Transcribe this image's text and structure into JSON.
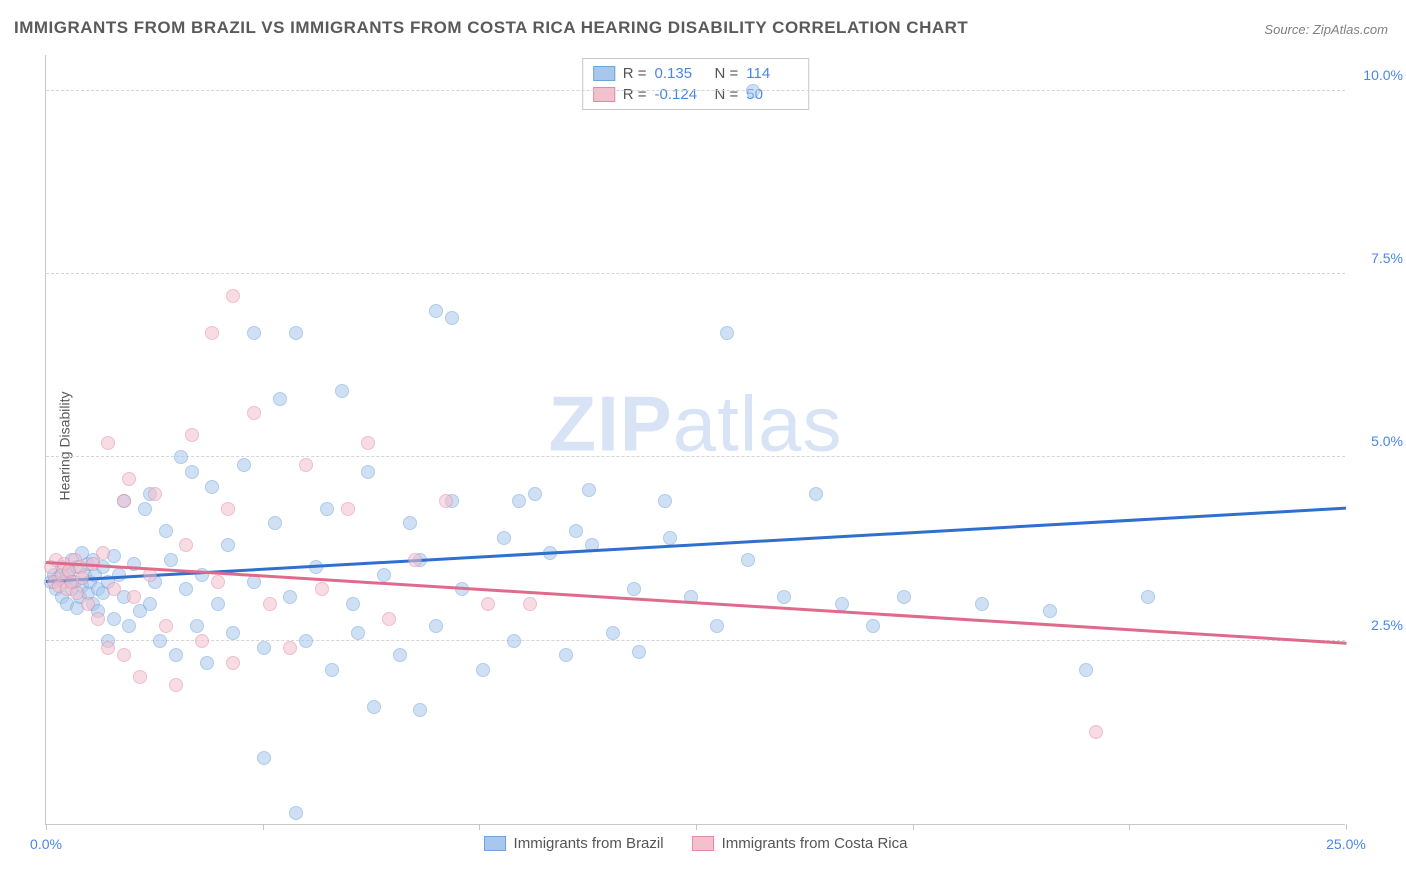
{
  "title": "IMMIGRANTS FROM BRAZIL VS IMMIGRANTS FROM COSTA RICA HEARING DISABILITY CORRELATION CHART",
  "source_label": "Source:",
  "source_value": "ZipAtlas.com",
  "ylabel": "Hearing Disability",
  "watermark_a": "ZIP",
  "watermark_b": "atlas",
  "chart": {
    "type": "scatter",
    "background": "#ffffff",
    "grid_color": "#d5d5d5",
    "axis_color": "#c8c8c8",
    "tick_label_color": "#4a86e8",
    "xlim": [
      0,
      25
    ],
    "ylim": [
      0,
      10.5
    ],
    "yticks": [
      2.5,
      5.0,
      7.5,
      10.0
    ],
    "ytick_labels": [
      "2.5%",
      "5.0%",
      "7.5%",
      "10.0%"
    ],
    "xticks": [
      0,
      4.17,
      8.33,
      12.5,
      16.67,
      20.83,
      25
    ],
    "xtick_labels": {
      "0": "0.0%",
      "25": "25.0%"
    },
    "series": [
      {
        "name": "Immigrants from Brazil",
        "color_fill": "#a8c7ec",
        "color_stroke": "#6fa3db",
        "marker_size": 14,
        "R": "0.135",
        "N": "114",
        "trend": {
          "y_at_x0": 3.3,
          "y_at_x25": 4.3,
          "color": "#2f6fd0",
          "width": 2.5
        },
        "points": [
          [
            0.1,
            3.3
          ],
          [
            0.15,
            3.4
          ],
          [
            0.2,
            3.2
          ],
          [
            0.25,
            3.35
          ],
          [
            0.3,
            3.5
          ],
          [
            0.3,
            3.1
          ],
          [
            0.35,
            3.3
          ],
          [
            0.4,
            3.4
          ],
          [
            0.4,
            3.0
          ],
          [
            0.45,
            3.45
          ],
          [
            0.5,
            3.6
          ],
          [
            0.5,
            3.2
          ],
          [
            0.55,
            3.3
          ],
          [
            0.6,
            3.5
          ],
          [
            0.6,
            2.95
          ],
          [
            0.65,
            3.1
          ],
          [
            0.7,
            3.7
          ],
          [
            0.7,
            3.25
          ],
          [
            0.75,
            3.4
          ],
          [
            0.8,
            3.15
          ],
          [
            0.8,
            3.55
          ],
          [
            0.85,
            3.3
          ],
          [
            0.9,
            3.0
          ],
          [
            0.9,
            3.6
          ],
          [
            0.95,
            3.4
          ],
          [
            1.0,
            3.2
          ],
          [
            1.0,
            2.9
          ],
          [
            1.1,
            3.5
          ],
          [
            1.1,
            3.15
          ],
          [
            1.2,
            2.5
          ],
          [
            1.2,
            3.3
          ],
          [
            1.3,
            3.65
          ],
          [
            1.3,
            2.8
          ],
          [
            1.4,
            3.4
          ],
          [
            1.5,
            3.1
          ],
          [
            1.5,
            4.4
          ],
          [
            1.6,
            2.7
          ],
          [
            1.7,
            3.55
          ],
          [
            1.8,
            2.9
          ],
          [
            1.9,
            4.3
          ],
          [
            2.0,
            3.0
          ],
          [
            2.0,
            4.5
          ],
          [
            2.1,
            3.3
          ],
          [
            2.2,
            2.5
          ],
          [
            2.3,
            4.0
          ],
          [
            2.4,
            3.6
          ],
          [
            2.5,
            2.3
          ],
          [
            2.6,
            5.0
          ],
          [
            2.7,
            3.2
          ],
          [
            2.8,
            4.8
          ],
          [
            2.9,
            2.7
          ],
          [
            3.0,
            3.4
          ],
          [
            3.1,
            2.2
          ],
          [
            3.2,
            4.6
          ],
          [
            3.3,
            3.0
          ],
          [
            3.5,
            3.8
          ],
          [
            3.6,
            2.6
          ],
          [
            3.8,
            4.9
          ],
          [
            4.0,
            6.7
          ],
          [
            4.0,
            3.3
          ],
          [
            4.2,
            2.4
          ],
          [
            4.2,
            0.9
          ],
          [
            4.4,
            4.1
          ],
          [
            4.5,
            5.8
          ],
          [
            4.7,
            3.1
          ],
          [
            4.8,
            6.7
          ],
          [
            4.8,
            0.15
          ],
          [
            5.0,
            2.5
          ],
          [
            5.2,
            3.5
          ],
          [
            5.4,
            4.3
          ],
          [
            5.5,
            2.1
          ],
          [
            5.7,
            5.9
          ],
          [
            5.9,
            3.0
          ],
          [
            6.0,
            2.6
          ],
          [
            6.2,
            4.8
          ],
          [
            6.3,
            1.6
          ],
          [
            6.5,
            3.4
          ],
          [
            6.8,
            2.3
          ],
          [
            7.0,
            4.1
          ],
          [
            7.2,
            3.6
          ],
          [
            7.2,
            1.55
          ],
          [
            7.5,
            7.0
          ],
          [
            7.5,
            2.7
          ],
          [
            7.8,
            4.4
          ],
          [
            7.8,
            6.9
          ],
          [
            8.0,
            3.2
          ],
          [
            8.4,
            2.1
          ],
          [
            8.8,
            3.9
          ],
          [
            9.0,
            2.5
          ],
          [
            9.1,
            4.4
          ],
          [
            9.4,
            4.5
          ],
          [
            9.7,
            3.7
          ],
          [
            10.0,
            2.3
          ],
          [
            10.2,
            4.0
          ],
          [
            10.45,
            4.55
          ],
          [
            10.5,
            3.8
          ],
          [
            10.9,
            2.6
          ],
          [
            11.3,
            3.2
          ],
          [
            11.4,
            2.35
          ],
          [
            11.9,
            4.4
          ],
          [
            12.0,
            3.9
          ],
          [
            12.4,
            3.1
          ],
          [
            12.9,
            2.7
          ],
          [
            13.1,
            6.7
          ],
          [
            13.5,
            3.6
          ],
          [
            13.6,
            10.0
          ],
          [
            14.2,
            3.1
          ],
          [
            14.8,
            4.5
          ],
          [
            15.3,
            3.0
          ],
          [
            15.9,
            2.7
          ],
          [
            16.5,
            3.1
          ],
          [
            18.0,
            3.0
          ],
          [
            19.3,
            2.9
          ],
          [
            20.0,
            2.1
          ],
          [
            21.2,
            3.1
          ]
        ]
      },
      {
        "name": "Immigrants from Costa Rica",
        "color_fill": "#f3c0cd",
        "color_stroke": "#e38aa3",
        "marker_size": 14,
        "R": "-0.124",
        "N": "50",
        "trend": {
          "y_at_x0": 3.55,
          "y_at_x25": 2.45,
          "color": "#e06a8c",
          "width": 2.5
        },
        "points": [
          [
            0.1,
            3.5
          ],
          [
            0.15,
            3.3
          ],
          [
            0.2,
            3.6
          ],
          [
            0.25,
            3.25
          ],
          [
            0.3,
            3.4
          ],
          [
            0.35,
            3.55
          ],
          [
            0.4,
            3.2
          ],
          [
            0.45,
            3.45
          ],
          [
            0.5,
            3.3
          ],
          [
            0.55,
            3.6
          ],
          [
            0.6,
            3.15
          ],
          [
            0.65,
            3.5
          ],
          [
            0.7,
            3.35
          ],
          [
            0.8,
            3.0
          ],
          [
            0.9,
            3.55
          ],
          [
            1.0,
            2.8
          ],
          [
            1.1,
            3.7
          ],
          [
            1.2,
            2.4
          ],
          [
            1.2,
            5.2
          ],
          [
            1.3,
            3.2
          ],
          [
            1.5,
            4.4
          ],
          [
            1.5,
            2.3
          ],
          [
            1.6,
            4.7
          ],
          [
            1.7,
            3.1
          ],
          [
            1.8,
            2.0
          ],
          [
            2.0,
            3.4
          ],
          [
            2.1,
            4.5
          ],
          [
            2.3,
            2.7
          ],
          [
            2.5,
            1.9
          ],
          [
            2.7,
            3.8
          ],
          [
            2.8,
            5.3
          ],
          [
            3.0,
            2.5
          ],
          [
            3.2,
            6.7
          ],
          [
            3.3,
            3.3
          ],
          [
            3.5,
            4.3
          ],
          [
            3.6,
            2.2
          ],
          [
            3.6,
            7.2
          ],
          [
            4.0,
            5.6
          ],
          [
            4.3,
            3.0
          ],
          [
            4.7,
            2.4
          ],
          [
            5.0,
            4.9
          ],
          [
            5.3,
            3.2
          ],
          [
            5.8,
            4.3
          ],
          [
            6.2,
            5.2
          ],
          [
            6.6,
            2.8
          ],
          [
            7.1,
            3.6
          ],
          [
            7.7,
            4.4
          ],
          [
            8.5,
            3.0
          ],
          [
            9.3,
            3.0
          ],
          [
            20.2,
            1.25
          ]
        ]
      }
    ],
    "legend_top_labels": {
      "R": "R =",
      "N": "N ="
    },
    "legend_bottom_labels": [
      "Immigrants from Brazil",
      "Immigrants from Costa Rica"
    ]
  }
}
